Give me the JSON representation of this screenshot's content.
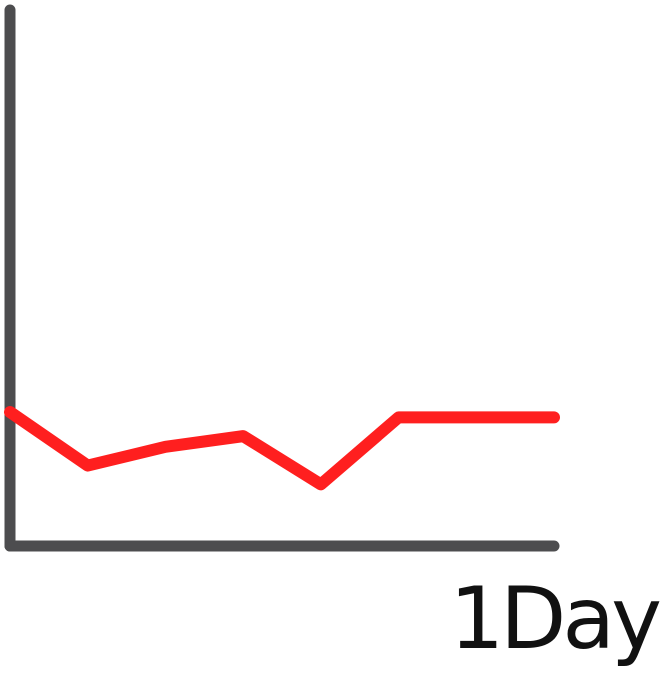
{
  "chart_data": {
    "type": "line",
    "title": "",
    "xlabel": "1Day",
    "ylabel": "",
    "x": [
      0,
      1,
      2,
      3,
      4,
      5,
      6,
      7
    ],
    "xlim": [
      0,
      7
    ],
    "ylim": [
      0,
      100
    ],
    "grid": false,
    "legend": "none",
    "series": [
      {
        "values": [
          25,
          15,
          18.5,
          20.5,
          11.5,
          24,
          24,
          24
        ],
        "color": "#ff1f1f"
      }
    ],
    "colors": {
      "axis": "#4d4d4f",
      "label": "#111111"
    }
  }
}
